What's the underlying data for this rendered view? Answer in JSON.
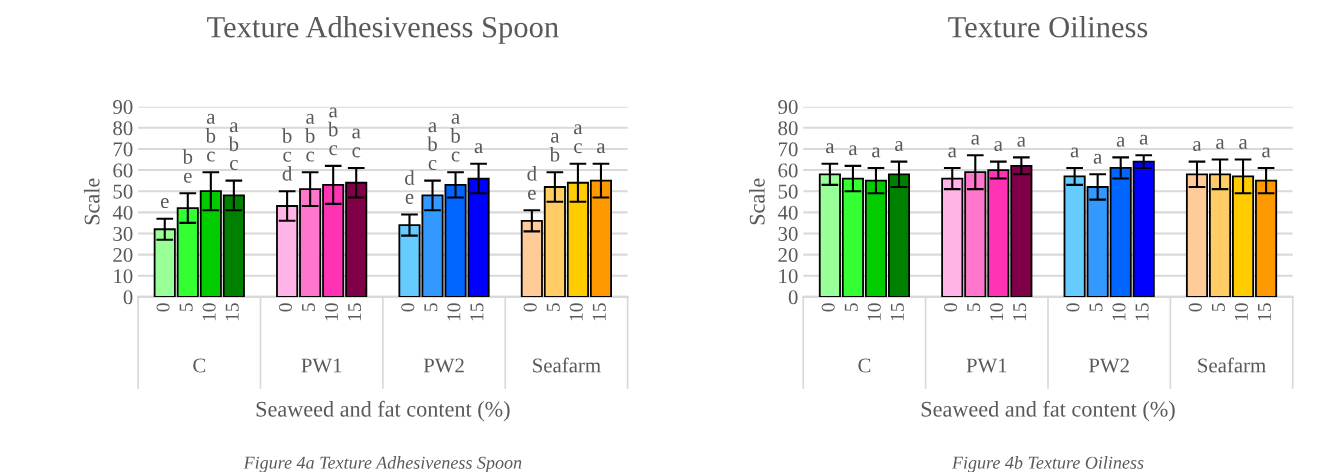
{
  "chart_data": [
    {
      "type": "bar",
      "title": "Texture Adhesiveness Spoon",
      "xlabel": "Seaweed and fat content (%)",
      "ylabel": "Scale",
      "categories": [
        "C",
        "PW1",
        "PW2",
        "Seafarm"
      ],
      "series": [
        {
          "name": "0",
          "colors": [
            "#99ff99",
            "#ffb3e6",
            "#66ccff",
            "#ffcc99"
          ],
          "values": [
            32,
            43,
            34,
            36
          ],
          "errors": [
            5,
            7,
            5,
            5
          ],
          "value_labels": [
            "e",
            "b\nc\nd",
            "d\ne",
            "d\ne"
          ]
        },
        {
          "name": "5",
          "colors": [
            "#33ff33",
            "#ff77cc",
            "#3399ff",
            "#ffcc66"
          ],
          "values": [
            42,
            51,
            48,
            52
          ],
          "errors": [
            7,
            8,
            7,
            7
          ],
          "value_labels": [
            "b\ne",
            "a\nb\nc",
            "a\nb\nc",
            "a\nb"
          ]
        },
        {
          "name": "10",
          "colors": [
            "#00cc00",
            "#ff33b4",
            "#0066ff",
            "#ffcc00"
          ],
          "values": [
            50,
            53,
            53,
            54
          ],
          "errors": [
            9,
            9,
            6,
            9
          ],
          "value_labels": [
            "a\nb\nc",
            "a\nb\nc",
            "a\nb\nc",
            "a\nc"
          ]
        },
        {
          "name": "15",
          "colors": [
            "#008000",
            "#800048",
            "#0000ff",
            "#ff9900"
          ],
          "values": [
            48,
            54,
            56,
            55
          ],
          "errors": [
            7,
            7,
            7,
            8
          ],
          "value_labels": [
            "a\nb\nc",
            "a\nc",
            "a",
            "a"
          ]
        }
      ],
      "ylim": [
        0,
        90
      ],
      "yticks": [
        0,
        10,
        20,
        30,
        40,
        50,
        60,
        70,
        80,
        90
      ],
      "grid": "y",
      "legend": false,
      "annotations": [
        "Figure 4a Texture Adhesiveness Spoon"
      ]
    },
    {
      "type": "bar",
      "title": "Texture Oiliness",
      "xlabel": "Seaweed and fat content (%)",
      "ylabel": "Scale",
      "categories": [
        "C",
        "PW1",
        "PW2",
        "Seafarm"
      ],
      "series": [
        {
          "name": "0",
          "colors": [
            "#99ff99",
            "#ffb3e6",
            "#66ccff",
            "#ffcc99"
          ],
          "values": [
            58,
            56,
            57,
            58
          ],
          "errors": [
            5,
            5,
            4,
            6
          ],
          "value_labels": [
            "a",
            "a",
            "a",
            "a"
          ]
        },
        {
          "name": "5",
          "colors": [
            "#33ff33",
            "#ff77cc",
            "#3399ff",
            "#ffcc66"
          ],
          "values": [
            56,
            59,
            52,
            58
          ],
          "errors": [
            6,
            8,
            6,
            7
          ],
          "value_labels": [
            "a",
            "a",
            "a",
            "a"
          ]
        },
        {
          "name": "10",
          "colors": [
            "#00cc00",
            "#ff33b4",
            "#0066ff",
            "#ffcc00"
          ],
          "values": [
            55,
            60,
            61,
            57
          ],
          "errors": [
            6,
            4,
            5,
            8
          ],
          "value_labels": [
            "a",
            "a",
            "a",
            "a"
          ]
        },
        {
          "name": "15",
          "colors": [
            "#008000",
            "#800048",
            "#0000ff",
            "#ff9900"
          ],
          "values": [
            58,
            62,
            64,
            55
          ],
          "errors": [
            6,
            4,
            3,
            6
          ],
          "value_labels": [
            "a",
            "a",
            "a",
            "a"
          ]
        }
      ],
      "ylim": [
        0,
        90
      ],
      "yticks": [
        0,
        10,
        20,
        30,
        40,
        50,
        60,
        70,
        80,
        90
      ],
      "grid": "y",
      "legend": false,
      "annotations": [
        "Figure 4b Texture Oiliness"
      ]
    }
  ]
}
